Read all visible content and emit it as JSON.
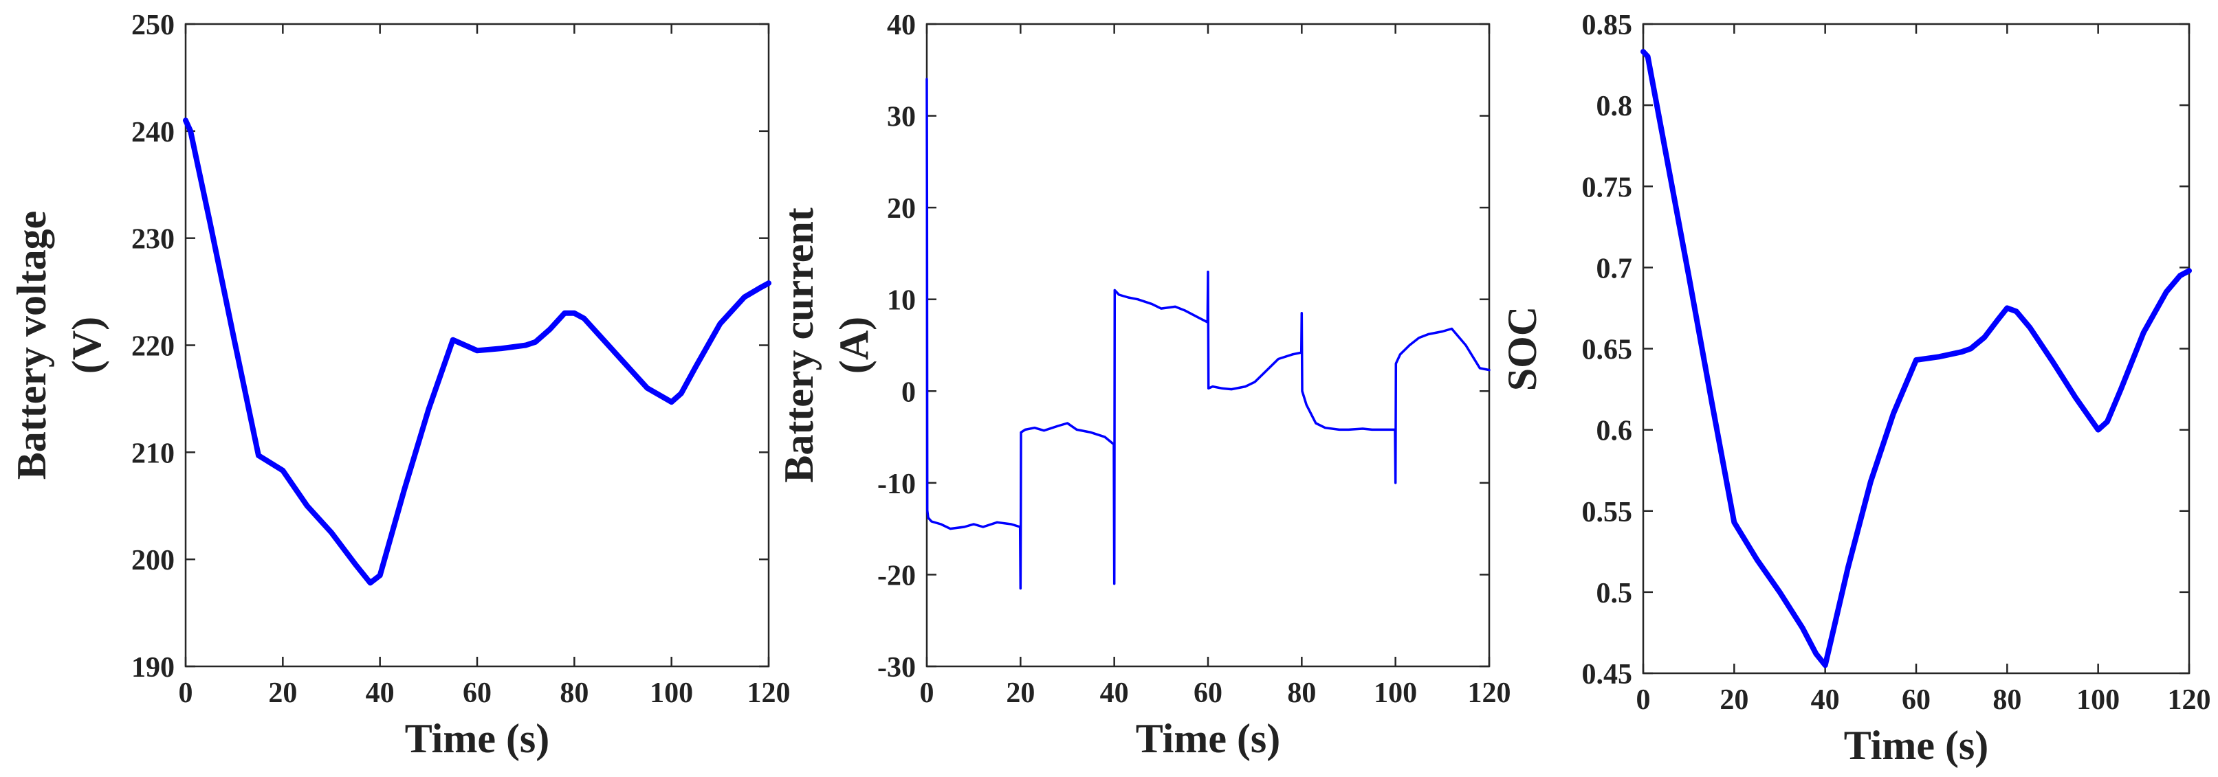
{
  "colors": {
    "line": "#0000ff",
    "axis": "#262626",
    "text": "#222222",
    "background": "#ffffff"
  },
  "chart_data": [
    {
      "type": "line",
      "title": "",
      "xlabel": "Time (s)",
      "ylabel_lines": [
        "Battery voltage",
        "(V)"
      ],
      "xlim": [
        0,
        120
      ],
      "ylim": [
        190,
        250
      ],
      "xticks": [
        0,
        20,
        40,
        60,
        80,
        100,
        120
      ],
      "yticks": [
        190,
        200,
        210,
        220,
        230,
        240,
        250
      ],
      "xtick_labels": [
        "0",
        "20",
        "40",
        "60",
        "80",
        "100",
        "120"
      ],
      "ytick_labels": [
        "190",
        "200",
        "210",
        "220",
        "230",
        "240",
        "250"
      ],
      "grid": false,
      "series": [
        {
          "x": [
            0,
            1,
            5,
            10,
            15,
            20,
            25,
            30,
            35,
            38,
            40,
            45,
            50,
            55,
            60,
            65,
            70,
            72,
            75,
            78,
            80,
            82,
            85,
            90,
            95,
            100,
            102,
            105,
            110,
            115,
            118,
            120
          ],
          "y": [
            241,
            240,
            231.5,
            220.5,
            209.7,
            208.3,
            205,
            202.5,
            199.5,
            197.8,
            198.5,
            206.5,
            214,
            220.5,
            219.5,
            219.7,
            220,
            220.3,
            221.5,
            223,
            223,
            222.5,
            221,
            218.5,
            216,
            214.7,
            215.5,
            218,
            222,
            224.5,
            225.3,
            225.8
          ]
        }
      ]
    },
    {
      "type": "line",
      "title": "",
      "xlabel": "Time (s)",
      "ylabel_lines": [
        "Battery current",
        "(A)"
      ],
      "xlim": [
        0,
        120
      ],
      "ylim": [
        -30,
        40
      ],
      "xticks": [
        0,
        20,
        40,
        60,
        80,
        100,
        120
      ],
      "yticks": [
        -30,
        -20,
        -10,
        0,
        10,
        20,
        30,
        40
      ],
      "xtick_labels": [
        "0",
        "20",
        "40",
        "60",
        "80",
        "100",
        "120"
      ],
      "ytick_labels": [
        "-30",
        "-20",
        "-10",
        "0",
        "10",
        "20",
        "30",
        "40"
      ],
      "grid": false,
      "series": [
        {
          "x": [
            0,
            0.05,
            0.1,
            0.3,
            1,
            3,
            5,
            8,
            10,
            12,
            15,
            18,
            19.9,
            20,
            20.05,
            20.1,
            21,
            23,
            25,
            28,
            30,
            32,
            35,
            38,
            39.9,
            40,
            40.05,
            40.1,
            41,
            43,
            45,
            48,
            50,
            53,
            55,
            58,
            59.9,
            60,
            60.05,
            60.1,
            61,
            63,
            65,
            68,
            70,
            72,
            75,
            78,
            79.9,
            80,
            80.05,
            80.1,
            81,
            83,
            85,
            88,
            90,
            93,
            95,
            98,
            99.9,
            100,
            100.05,
            100.1,
            101,
            103,
            105,
            107,
            110,
            112,
            115,
            118,
            120
          ],
          "y": [
            34,
            20,
            -13,
            -13.8,
            -14.2,
            -14.5,
            -15,
            -14.8,
            -14.5,
            -14.8,
            -14.3,
            -14.5,
            -14.8,
            -21.5,
            -14,
            -4.5,
            -4.2,
            -4,
            -4.3,
            -3.8,
            -3.5,
            -4.2,
            -4.5,
            -5,
            -5.8,
            -21,
            -6,
            11,
            10.5,
            10.2,
            10,
            9.5,
            9,
            9.2,
            8.8,
            8,
            7.5,
            13,
            7.5,
            0.3,
            0.5,
            0.3,
            0.2,
            0.5,
            1,
            2,
            3.5,
            4,
            4.2,
            8.5,
            4,
            0,
            -1.5,
            -3.5,
            -4,
            -4.2,
            -4.2,
            -4.1,
            -4.2,
            -4.2,
            -4.2,
            -10,
            -4,
            3,
            4,
            5,
            5.8,
            6.2,
            6.5,
            6.8,
            5,
            2.5,
            2.3
          ]
        }
      ]
    },
    {
      "type": "line",
      "title": "",
      "xlabel": "Time (s)",
      "ylabel_lines": [
        "SOC"
      ],
      "xlim": [
        0,
        120
      ],
      "ylim": [
        0.45,
        0.85
      ],
      "xticks": [
        0,
        20,
        40,
        60,
        80,
        100,
        120
      ],
      "yticks": [
        0.45,
        0.5,
        0.55,
        0.6,
        0.65,
        0.7,
        0.75,
        0.8,
        0.85
      ],
      "xtick_labels": [
        "0",
        "20",
        "40",
        "60",
        "80",
        "100",
        "120"
      ],
      "ytick_labels": [
        "0.45",
        "0.5",
        "0.55",
        "0.6",
        "0.65",
        "0.7",
        "0.75",
        "0.8",
        "0.85"
      ],
      "grid": false,
      "series": [
        {
          "x": [
            0,
            1,
            5,
            10,
            15,
            20,
            25,
            30,
            35,
            38,
            40,
            45,
            50,
            55,
            60,
            65,
            70,
            72,
            75,
            78,
            80,
            82,
            85,
            90,
            95,
            100,
            102,
            105,
            110,
            115,
            118,
            120
          ],
          "y": [
            0.833,
            0.83,
            0.77,
            0.695,
            0.618,
            0.543,
            0.52,
            0.5,
            0.478,
            0.462,
            0.455,
            0.515,
            0.568,
            0.61,
            0.643,
            0.645,
            0.648,
            0.65,
            0.657,
            0.668,
            0.675,
            0.673,
            0.663,
            0.642,
            0.62,
            0.6,
            0.605,
            0.625,
            0.66,
            0.685,
            0.695,
            0.698
          ]
        }
      ]
    }
  ]
}
